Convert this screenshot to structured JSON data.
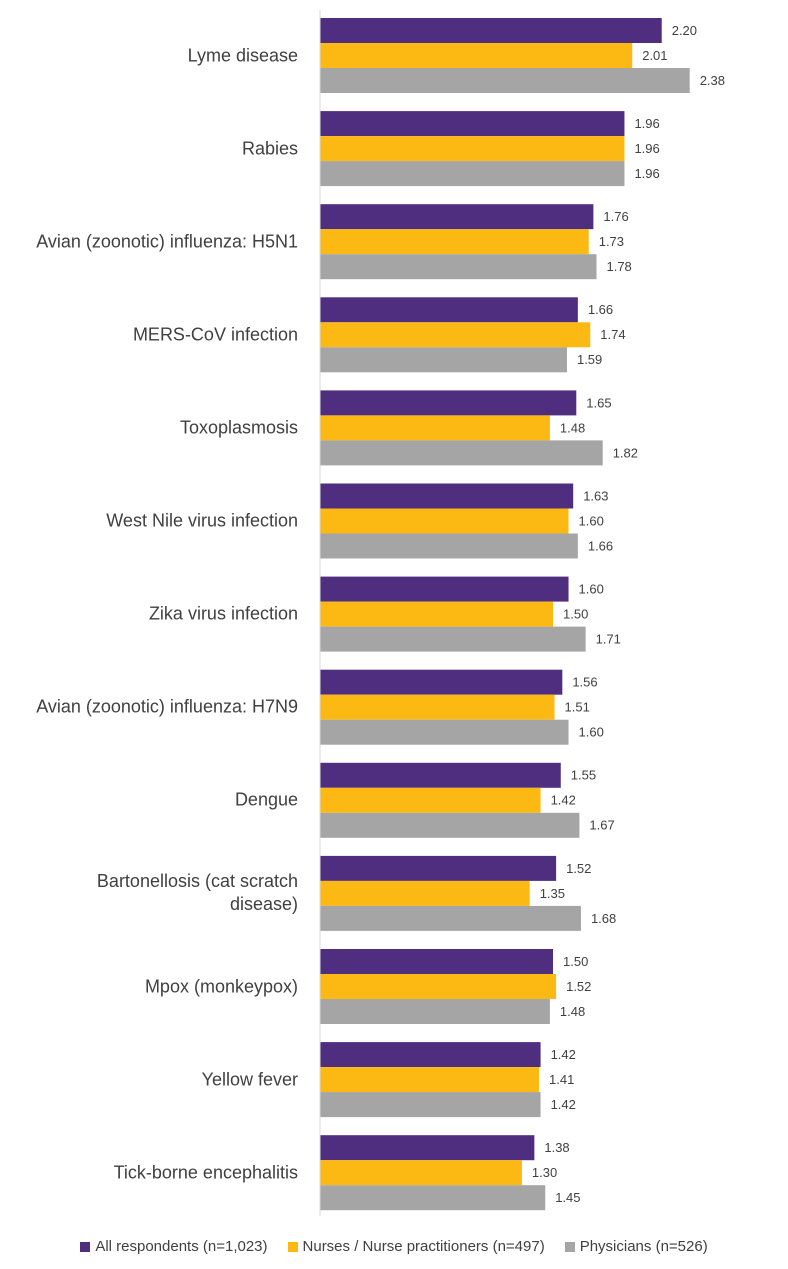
{
  "chart_data": {
    "type": "bar",
    "orientation": "horizontal",
    "categories": [
      "Lyme disease",
      "Rabies",
      "Avian (zoonotic) influenza: H5N1",
      "MERS-CoV infection",
      "Toxoplasmosis",
      "West Nile virus infection",
      "Zika virus infection",
      "Avian (zoonotic) influenza: H7N9",
      "Dengue",
      "Bartonellosis (cat scratch disease)",
      "Mpox (monkeypox)",
      "Yellow fever",
      "Tick-borne encephalitis"
    ],
    "series": [
      {
        "name": "All respondents (n=1,023)",
        "color": "#4f2d7f",
        "values": [
          2.2,
          1.96,
          1.76,
          1.66,
          1.65,
          1.63,
          1.6,
          1.56,
          1.55,
          1.52,
          1.5,
          1.42,
          1.38
        ],
        "value_labels": [
          "2.20",
          "1.96",
          "1.76",
          "1.66",
          "1.65",
          "1.63",
          "1.60",
          "1.56",
          "1.55",
          "1.52",
          "1.50",
          "1.42",
          "1.38"
        ]
      },
      {
        "name": "Nurses / Nurse practitioners (n=497)",
        "color": "#fdb913",
        "values": [
          2.01,
          1.96,
          1.73,
          1.74,
          1.48,
          1.6,
          1.5,
          1.51,
          1.42,
          1.35,
          1.52,
          1.41,
          1.3
        ],
        "value_labels": [
          "2.01",
          "1.96",
          "1.73",
          "1.74",
          "1.48",
          "1.60",
          "1.50",
          "1.51",
          "1.42",
          "1.35",
          "1.52",
          "1.41",
          "1.30"
        ]
      },
      {
        "name": "Physicians (n=526)",
        "color": "#a5a5a5",
        "values": [
          2.38,
          1.96,
          1.78,
          1.59,
          1.82,
          1.66,
          1.71,
          1.6,
          1.67,
          1.68,
          1.48,
          1.42,
          1.45
        ],
        "value_labels": [
          "2.38",
          "1.96",
          "1.78",
          "1.59",
          "1.82",
          "1.66",
          "1.71",
          "1.60",
          "1.67",
          "1.68",
          "1.48",
          "1.42",
          "1.45"
        ]
      }
    ],
    "xlim": [
      0,
      3
    ],
    "legend": "bottom"
  }
}
